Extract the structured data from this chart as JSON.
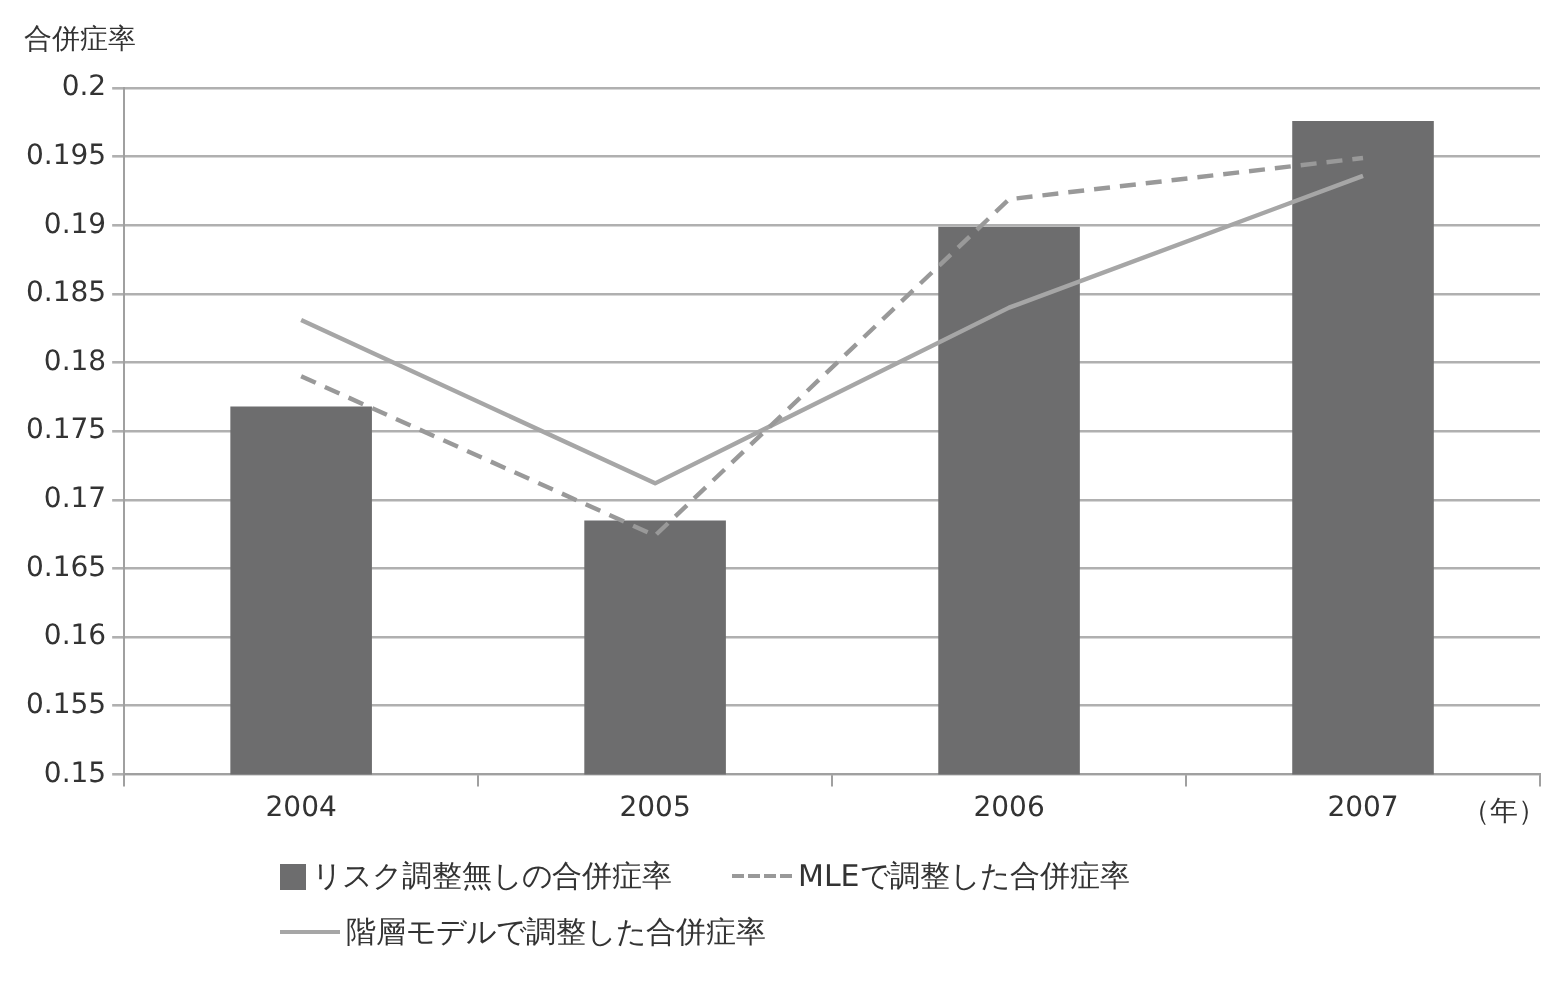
{
  "chart_data": {
    "type": "bar",
    "ylabel": "合併症率",
    "xlabel": "（年）",
    "categories": [
      "2004",
      "2005",
      "2006",
      "2007"
    ],
    "series": [
      {
        "name": "リスク調整無しの合併症率",
        "color": "#6d6d6e",
        "values": [
          0.1768,
          0.1685,
          0.1899,
          0.1976
        ]
      },
      {
        "name": "MLEで調整した合併症率",
        "type": "line",
        "color": "#999999",
        "line_style": "dashed",
        "values": [
          0.179,
          0.1674,
          0.1919,
          0.1949
        ]
      },
      {
        "name": "階層モデルで調整した合併症率",
        "type": "line",
        "color": "#a6a6a6",
        "line_style": "solid",
        "values": [
          0.1831,
          0.1712,
          0.184,
          0.1936
        ]
      }
    ],
    "ylim": [
      0.15,
      0.2
    ],
    "yticks": [
      0.15,
      0.155,
      0.16,
      0.165,
      0.17,
      0.175,
      0.18,
      0.185,
      0.19,
      0.195,
      0.2
    ],
    "grid": "y",
    "legend": "bottom",
    "marker": "none"
  }
}
